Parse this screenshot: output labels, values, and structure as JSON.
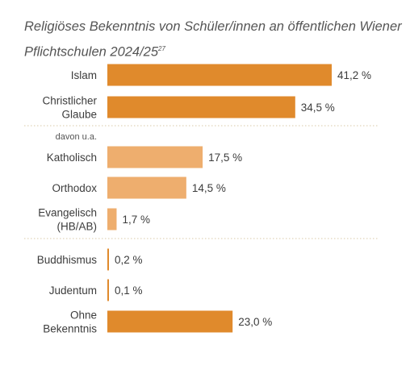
{
  "title": "Religiöses Bekenntnis von Schüler/innen an öffentlichen Wiener Pflichtschulen 2024/25",
  "footnote": "27",
  "subgroup_label": "davon u.a.",
  "colors": {
    "main": "#e08a2c",
    "sub": "#eeae6e",
    "divider": "#d9c9a8"
  },
  "chart_data": {
    "type": "bar",
    "orientation": "horizontal",
    "title": "Religiöses Bekenntnis von Schüler/innen an öffentlichen Wiener Pflichtschulen 2024/25",
    "categories": [
      [
        "Islam"
      ],
      [
        "Christlicher",
        "Glaube"
      ],
      [
        "Katholisch"
      ],
      [
        "Orthodox"
      ],
      [
        "Evangelisch",
        "(HB/AB)"
      ],
      [
        "Buddhismus"
      ],
      [
        "Judentum"
      ],
      [
        "Ohne",
        "Bekenntnis"
      ]
    ],
    "values": [
      41.2,
      34.5,
      17.5,
      14.5,
      1.7,
      0.2,
      0.1,
      23.0
    ],
    "value_labels": [
      "41,2 %",
      "34,5 %",
      "17,5 %",
      "14,5 %",
      "1,7 %",
      "0,2 %",
      "0,1 %",
      "23,0 %"
    ],
    "groups": [
      "main",
      "main",
      "sub",
      "sub",
      "sub",
      "main",
      "main",
      "main"
    ],
    "unit": "%",
    "xlim": [
      0,
      41.2
    ],
    "grid": false,
    "legend": "none"
  }
}
